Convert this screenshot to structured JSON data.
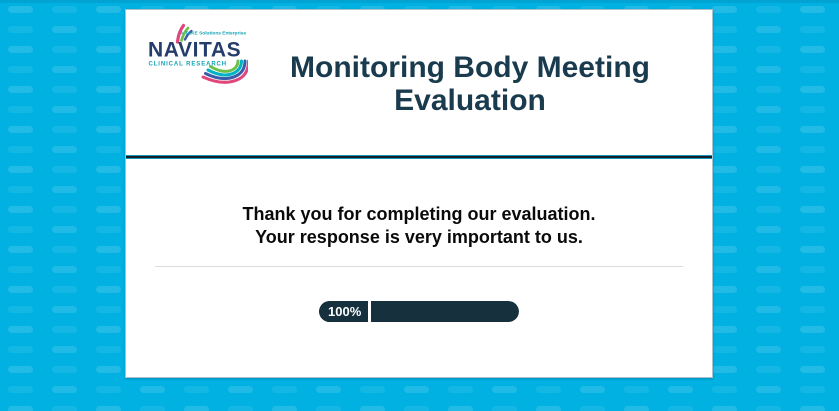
{
  "theme": {
    "background_color": "#00b1e2",
    "card_background": "#ffffff",
    "title_color": "#1a3a4e",
    "message_color": "#0a0a0a",
    "progress_bar_color": "#16303e",
    "header_divider_dark": "#121f27",
    "header_divider_teal": "#1796bd"
  },
  "logo": {
    "brand": "NAVITAS",
    "division": "CLINICAL RESEARCH",
    "tagline": "A TAKE Solutions Enterprise",
    "brand_color": "#263c6b",
    "teal": "#13a3b4",
    "pink": "#e0477c",
    "green": "#6fbf4c",
    "blue": "#3b5ca8"
  },
  "header": {
    "title_line1": "Monitoring Body Meeting",
    "title_line2": "Evaluation"
  },
  "body": {
    "message_line1": "Thank you for completing our evaluation.",
    "message_line2": "Your response is very important to us."
  },
  "progress": {
    "label": "100%",
    "percent": 100
  }
}
